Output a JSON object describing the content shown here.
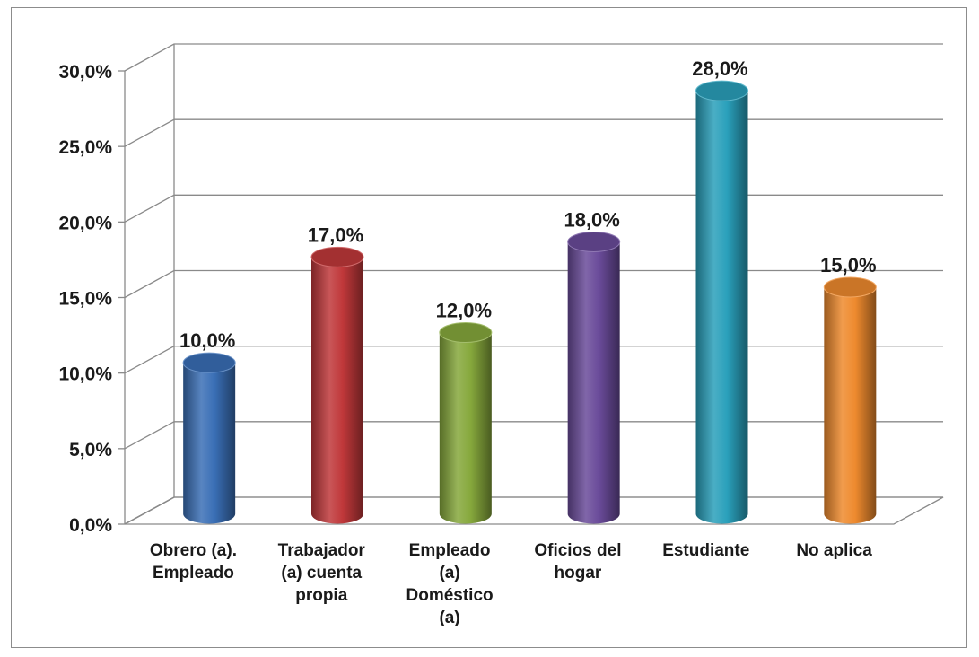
{
  "chart_data": {
    "type": "bar",
    "title": "",
    "xlabel": "",
    "ylabel": "",
    "categories": [
      [
        "Obrero (a).",
        "Empleado"
      ],
      [
        "Trabajador",
        "(a) cuenta",
        "propia"
      ],
      [
        "Empleado",
        "(a)",
        "Doméstico",
        "(a)"
      ],
      [
        "Oficios del",
        "hogar"
      ],
      [
        "Estudiante"
      ],
      [
        "No aplica"
      ]
    ],
    "values": [
      10.0,
      17.0,
      12.0,
      18.0,
      28.0,
      15.0
    ],
    "data_labels": [
      "10,0%",
      "17,0%",
      "12,0%",
      "18,0%",
      "28,0%",
      "15,0%"
    ],
    "ylim": [
      0,
      30
    ],
    "yticks": [
      0,
      5,
      10,
      15,
      20,
      25,
      30
    ],
    "ytick_labels": [
      "0,0%",
      "5,0%",
      "10,0%",
      "15,0%",
      "20,0%",
      "25,0%",
      "30,0%"
    ],
    "colors": [
      "#3a6fb6",
      "#c0383a",
      "#86a83c",
      "#6a4b9a",
      "#2aa0bb",
      "#ee8a2e"
    ],
    "bar_style": "3d-cylinder",
    "grid": true,
    "legend": "none"
  }
}
